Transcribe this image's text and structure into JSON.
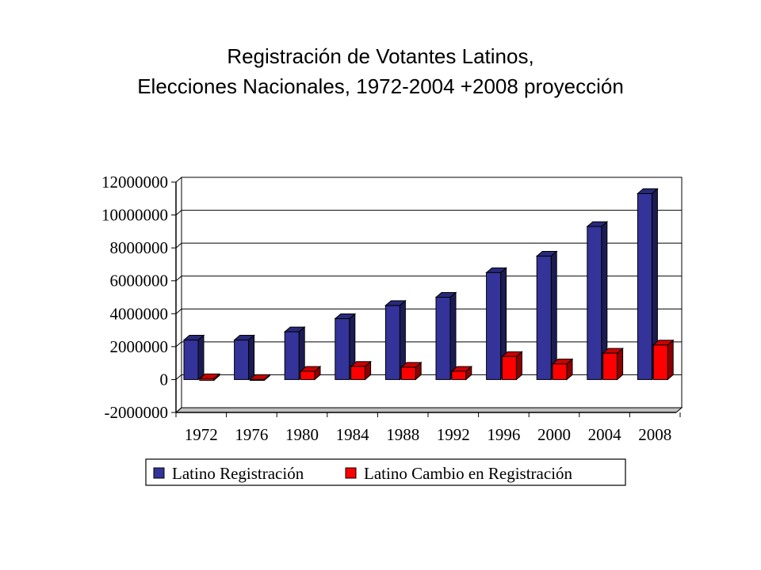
{
  "title": {
    "line1": "Registración de Votantes Latinos,",
    "line2": "Elecciones Nacionales, 1972-2004 +2008 proyección"
  },
  "chart_data": {
    "type": "bar",
    "title": "Registración de Votantes Latinos, Elecciones Nacionales, 1972-2004 +2008 proyección",
    "xlabel": "",
    "ylabel": "",
    "categories": [
      "1972",
      "1976",
      "1980",
      "1984",
      "1988",
      "1992",
      "1996",
      "2000",
      "2004",
      "2008"
    ],
    "series": [
      {
        "name": "Latino Registración",
        "color": "#333399",
        "values": [
          2400000,
          2400000,
          2900000,
          3700000,
          4500000,
          5000000,
          6500000,
          7500000,
          9300000,
          11300000
        ]
      },
      {
        "name": "Latino Cambio en Registración",
        "color": "#ff0000",
        "values": [
          0,
          -50000,
          500000,
          800000,
          750000,
          500000,
          1400000,
          950000,
          1600000,
          2100000
        ]
      }
    ],
    "ylim": [
      -2000000,
      12000000
    ],
    "yticks": [
      "12000000",
      "10000000",
      "8000000",
      "6000000",
      "4000000",
      "2000000",
      "0",
      "-2000000"
    ],
    "ytick_values": [
      12000000,
      10000000,
      8000000,
      6000000,
      4000000,
      2000000,
      0,
      -2000000
    ],
    "grid": true,
    "legend_position": "bottom",
    "style": "3d-bar"
  }
}
